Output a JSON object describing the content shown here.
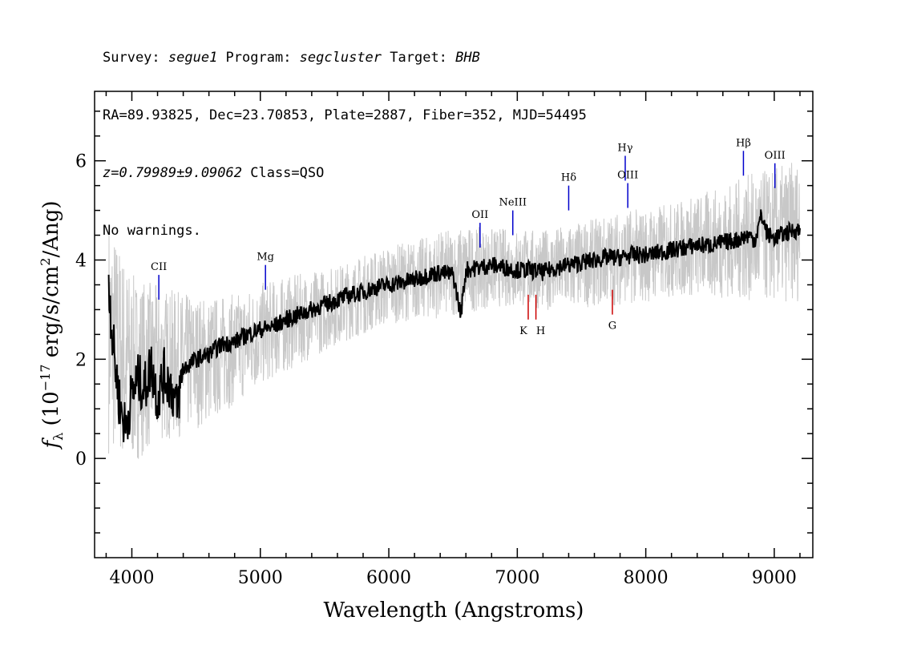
{
  "header": {
    "line1": {
      "survey_label": "Survey: ",
      "survey": "segue1",
      "program_label": " Program: ",
      "program": "segcluster",
      "target_label": " Target: ",
      "target": "BHB"
    },
    "line2": "RA=89.93825, Dec=23.70853, Plate=2887, Fiber=352, MJD=54495",
    "line3": {
      "z": "z=0.79989±9.09062",
      "class": " Class=QSO"
    },
    "line4": "No warnings."
  },
  "chart_data": {
    "type": "line",
    "xlabel": "Wavelength (Angstroms)",
    "ylabel": "f_λ (10^-17 erg/s/cm^2/Ang)",
    "xlim": [
      3710,
      9300
    ],
    "ylim": [
      -2.0,
      7.4
    ],
    "xticks": [
      4000,
      5000,
      6000,
      7000,
      8000,
      9000
    ],
    "yticks": [
      0,
      2,
      4,
      6
    ],
    "grid": false,
    "series": [
      {
        "style": "black-smoothed-flux",
        "color": "#000000",
        "x": [
          3820,
          3850,
          3900,
          3950,
          4000,
          4050,
          4100,
          4150,
          4200,
          4250,
          4300,
          4350,
          4400,
          4450,
          4500,
          4600,
          4700,
          4800,
          4900,
          5000,
          5100,
          5200,
          5300,
          5400,
          5500,
          5600,
          5700,
          5800,
          5900,
          6000,
          6100,
          6200,
          6300,
          6400,
          6500,
          6560,
          6600,
          6700,
          6800,
          6900,
          7000,
          7100,
          7200,
          7300,
          7400,
          7500,
          7600,
          7700,
          7800,
          7900,
          8000,
          8100,
          8200,
          8300,
          8400,
          8500,
          8600,
          8700,
          8800,
          8850,
          8900,
          8950,
          9000,
          9050,
          9100,
          9150,
          9200
        ],
        "y": [
          3.6,
          2.4,
          1.2,
          0.6,
          1.3,
          1.6,
          1.4,
          1.9,
          1.2,
          1.7,
          1.5,
          1.0,
          1.8,
          1.9,
          2.0,
          2.1,
          2.3,
          2.35,
          2.5,
          2.6,
          2.65,
          2.8,
          2.9,
          3.0,
          3.1,
          3.2,
          3.3,
          3.35,
          3.45,
          3.5,
          3.55,
          3.6,
          3.7,
          3.75,
          3.7,
          2.9,
          3.8,
          3.85,
          3.9,
          3.85,
          3.8,
          3.8,
          3.75,
          3.85,
          3.9,
          3.95,
          4.0,
          4.05,
          4.05,
          4.1,
          4.1,
          4.15,
          4.2,
          4.25,
          4.3,
          4.3,
          4.35,
          4.4,
          4.5,
          4.4,
          4.9,
          4.5,
          4.45,
          4.5,
          4.55,
          4.6,
          4.6
        ]
      },
      {
        "style": "gray-error-band",
        "color": "#c8c8c8",
        "x": [
          3820,
          4000,
          4200,
          4400,
          4600,
          4800,
          5000,
          5200,
          5400,
          5600,
          5800,
          6000,
          6200,
          6400,
          6600,
          6800,
          7000,
          7200,
          7400,
          7600,
          7800,
          8000,
          8200,
          8400,
          8600,
          8800,
          9000,
          9200
        ],
        "y": [
          2.5,
          1.8,
          1.9,
          1.9,
          2.0,
          2.2,
          2.5,
          2.7,
          2.9,
          3.1,
          3.3,
          3.5,
          3.6,
          3.7,
          3.8,
          3.85,
          3.85,
          3.8,
          3.85,
          3.95,
          4.05,
          4.1,
          4.2,
          4.3,
          4.35,
          4.45,
          4.5,
          4.6
        ],
        "spread": [
          1.5,
          1.2,
          1.0,
          0.9,
          0.8,
          0.7,
          0.65,
          0.6,
          0.55,
          0.5,
          0.5,
          0.5,
          0.5,
          0.55,
          0.55,
          0.5,
          0.5,
          0.5,
          0.55,
          0.55,
          0.6,
          0.6,
          0.6,
          0.65,
          0.7,
          0.8,
          0.85,
          0.9
        ]
      }
    ],
    "emission_lines": [
      {
        "label": "CII",
        "x": 4210,
        "y0": 3.2,
        "y1": 3.7,
        "color": "#0000cc"
      },
      {
        "label": "Mg",
        "x": 5040,
        "y0": 3.4,
        "y1": 3.9,
        "color": "#0000cc"
      },
      {
        "label": "OII",
        "x": 6710,
        "y0": 4.25,
        "y1": 4.75,
        "color": "#0000cc"
      },
      {
        "label": "NeIII",
        "x": 6965,
        "y0": 4.5,
        "y1": 5.0,
        "color": "#0000cc"
      },
      {
        "label": "Hδ",
        "x": 7400,
        "y0": 5.0,
        "y1": 5.5,
        "color": "#0000cc"
      },
      {
        "label": "Hγ",
        "x": 7840,
        "y0": 5.6,
        "y1": 6.1,
        "color": "#0000cc"
      },
      {
        "label": "OIII",
        "x": 7860,
        "y0": 5.05,
        "y1": 5.55,
        "color": "#0000cc"
      },
      {
        "label": "Hβ",
        "x": 8760,
        "y0": 5.7,
        "y1": 6.2,
        "color": "#0000cc"
      },
      {
        "label": "OIII",
        "x": 9005,
        "y0": 5.45,
        "y1": 5.95,
        "color": "#0000cc"
      }
    ],
    "absorption_lines": [
      {
        "label": "K",
        "x": 7085,
        "y0": 2.8,
        "y1": 3.3,
        "color": "#cc0000"
      },
      {
        "label": "H",
        "x": 7145,
        "y0": 2.8,
        "y1": 3.3,
        "color": "#cc0000"
      },
      {
        "label": "G",
        "x": 7740,
        "y0": 2.9,
        "y1": 3.4,
        "color": "#cc0000"
      }
    ]
  }
}
